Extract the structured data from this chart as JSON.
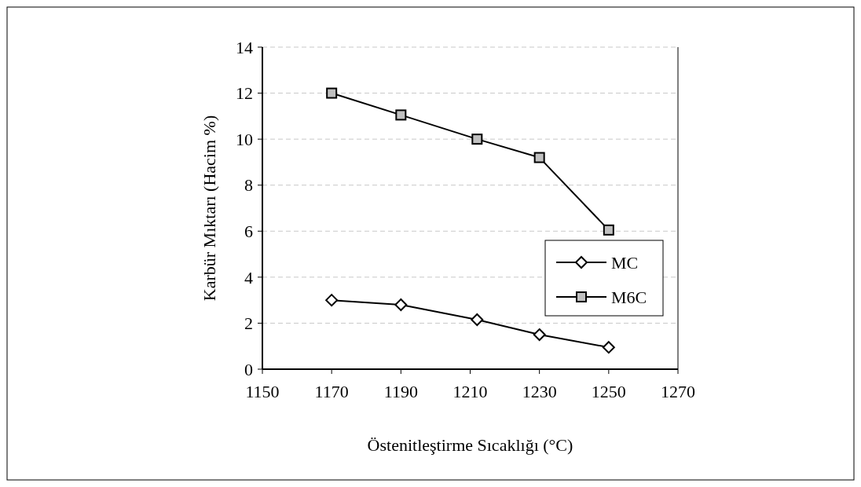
{
  "chart_data": {
    "type": "line",
    "xlabel": "Östenitleştirme Sıcaklığı (°C)",
    "ylabel": "Karbür Mıktarı (Hacim %)",
    "x": [
      1170,
      1190,
      1212,
      1230,
      1250
    ],
    "series": [
      {
        "name": "MC",
        "color": "#000000",
        "marker": "diamond",
        "values": [
          3.0,
          2.8,
          2.15,
          1.5,
          0.95
        ]
      },
      {
        "name": "M6C",
        "color": "#000000",
        "marker": "square",
        "values": [
          12.0,
          11.05,
          10.0,
          9.2,
          6.05
        ]
      }
    ],
    "xlim": [
      1150,
      1270
    ],
    "xticks": [
      1150,
      1170,
      1190,
      1210,
      1230,
      1250,
      1270
    ],
    "ylim": [
      0,
      14
    ],
    "yticks": [
      0,
      2,
      4,
      6,
      8,
      10,
      12,
      14
    ],
    "grid": "y",
    "legend": "right",
    "line_style": "solid"
  }
}
